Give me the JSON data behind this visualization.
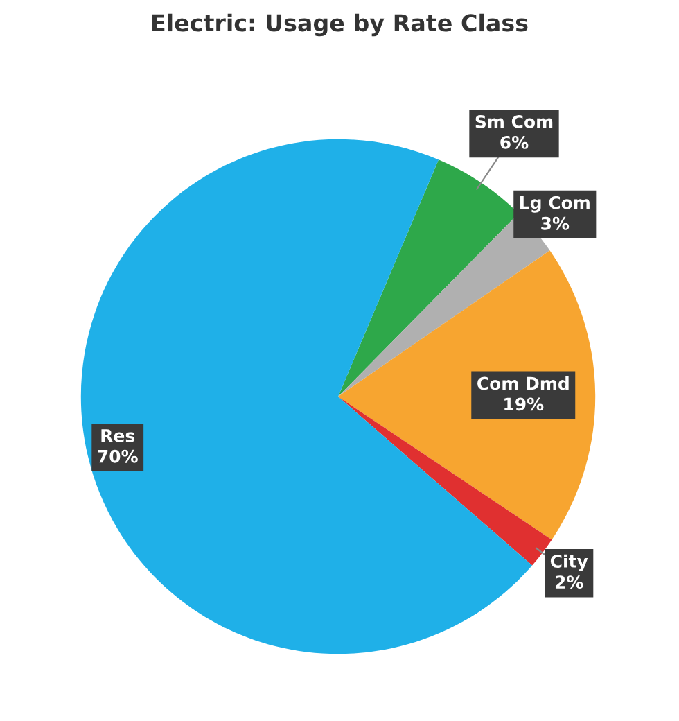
{
  "chart_data": {
    "type": "pie",
    "title": "Electric: Usage by Rate Class",
    "categories": [
      "Sm Com",
      "Lg Com",
      "Com Dmd",
      "City",
      "Res"
    ],
    "values": [
      6,
      3,
      19,
      2,
      70
    ],
    "colors": [
      "#2ea84a",
      "#b0b0b0",
      "#f7a530",
      "#e03030",
      "#1fb0e8"
    ],
    "value_labels": [
      "6%",
      "3%",
      "19%",
      "2%",
      "70%"
    ]
  }
}
